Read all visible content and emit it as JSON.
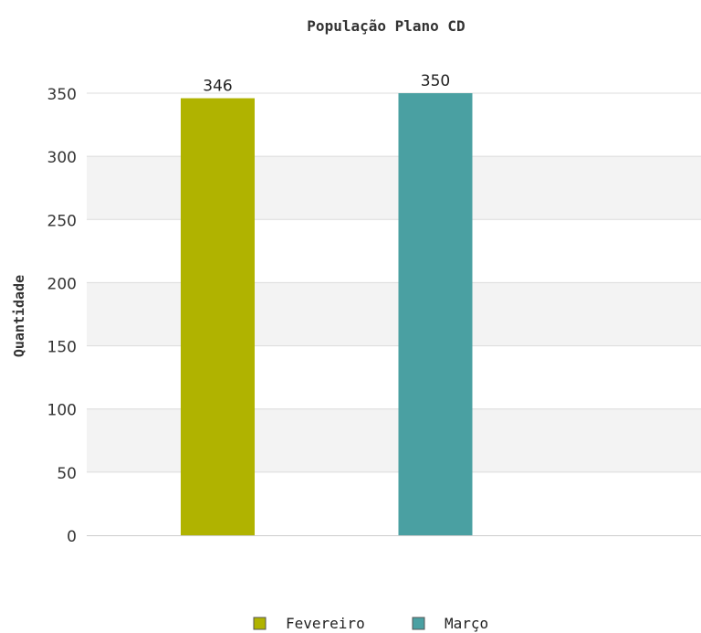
{
  "chart_data": {
    "type": "bar",
    "title": "População Plano CD",
    "xlabel": "",
    "ylabel": "Quantidade",
    "ylim": [
      0,
      350
    ],
    "yticks": [
      0,
      50,
      100,
      150,
      200,
      250,
      300,
      350
    ],
    "grid": true,
    "legend_position": "bottom",
    "series": [
      {
        "name": "Fevereiro",
        "value": 346,
        "color": "#b0b300"
      },
      {
        "name": "Março",
        "value": 350,
        "color": "#4aa0a2"
      }
    ],
    "colors": {
      "band": "#f3f3f3",
      "gridline": "#dcdcdc",
      "axis": "#cccccc"
    }
  }
}
